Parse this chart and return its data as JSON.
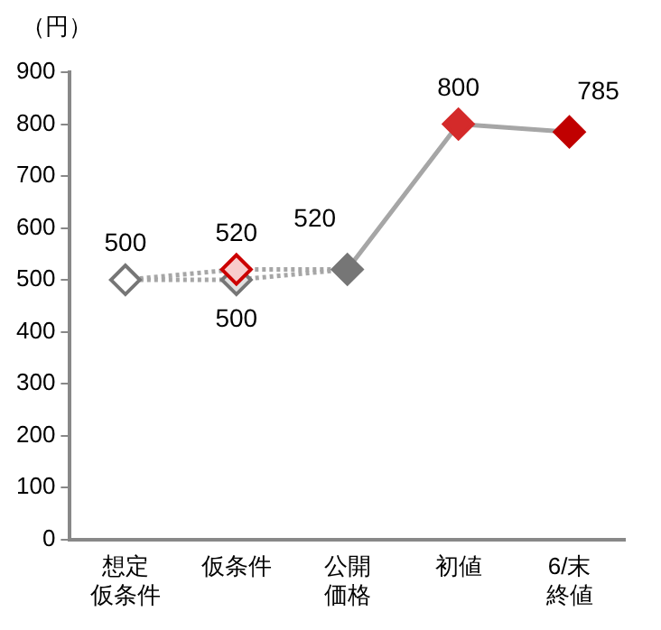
{
  "chart_data": {
    "type": "line",
    "ylabel": "（円）",
    "categories": [
      "想定仮条件",
      "仮条件",
      "公開価格",
      "初値",
      "6/末終値"
    ],
    "ylim": [
      0,
      900
    ],
    "yticks": [
      0,
      100,
      200,
      300,
      400,
      500,
      600,
      700,
      800,
      900
    ],
    "grid": false,
    "legend": false,
    "series": [
      {
        "type": "line",
        "color": "#a6a6a6",
        "line_style": "dotted",
        "marker": "none",
        "values": [
          500,
          520,
          520,
          null,
          null
        ]
      },
      {
        "type": "line",
        "color": "#a6a6a6",
        "line_style": "dotted",
        "marker": "none",
        "values": [
          500,
          500,
          520,
          null,
          null
        ]
      },
      {
        "type": "line",
        "color": "#a6a6a6",
        "line_style": "solid",
        "marker": "none",
        "values": [
          null,
          null,
          520,
          800,
          785
        ]
      },
      {
        "type": "scatter",
        "color": "#767676",
        "marker": "diamond",
        "data_labels": true,
        "x": [
          "想定仮条件",
          "仮条件",
          "仮条件",
          "公開価格",
          "初値",
          "6/末終値"
        ],
        "values": [
          500,
          500,
          520,
          520,
          800,
          785
        ],
        "colors": [
          "#ffffff",
          "#e0e0e0",
          "#f8cccc",
          "#767676",
          "#d42a2a",
          "#c00000"
        ]
      }
    ]
  }
}
